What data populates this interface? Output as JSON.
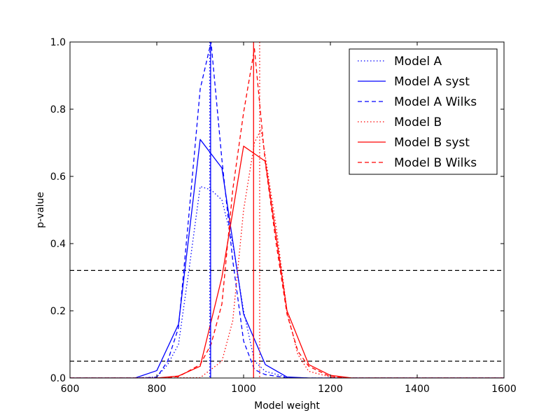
{
  "chart_data": {
    "type": "line",
    "title": "",
    "xlabel": "Model weight",
    "ylabel": "p-value",
    "xlim": [
      600,
      1600
    ],
    "ylim": [
      0,
      1.0
    ],
    "xticks": [
      "600",
      "800",
      "1000",
      "1200",
      "1400",
      "1600"
    ],
    "yticks": [
      "0.0",
      "0.2",
      "0.4",
      "0.6",
      "0.8",
      "1.0"
    ],
    "grid": false,
    "legend": "top-right",
    "colors": {
      "modelA": "#0000ff",
      "modelB": "#ff0000",
      "reference": "#000000"
    },
    "series": [
      {
        "name": "Model A",
        "color": "#0000ff",
        "style": "dotted",
        "x": [
          600,
          750,
          800,
          825,
          850,
          875,
          900,
          925,
          950,
          975,
          1000,
          1025,
          1050,
          1100,
          1150,
          1200,
          1400,
          1600
        ],
        "y": [
          0,
          0,
          0.003,
          0.04,
          0.1,
          0.33,
          0.57,
          0.56,
          0.53,
          0.4,
          0.2,
          0.05,
          0.02,
          0.002,
          0,
          0,
          0,
          0
        ]
      },
      {
        "name": "Model A syst",
        "color": "#0000ff",
        "style": "solid",
        "x": [
          600,
          750,
          800,
          850,
          900,
          950,
          1000,
          1050,
          1100,
          1150,
          1200,
          1400,
          1600
        ],
        "y": [
          0,
          0,
          0.022,
          0.16,
          0.71,
          0.625,
          0.19,
          0.04,
          0.003,
          0,
          0,
          0,
          0
        ]
      },
      {
        "name": "Model A Wilks",
        "color": "#0000ff",
        "style": "dashed",
        "x": [
          600,
          750,
          800,
          825,
          850,
          875,
          900,
          925,
          950,
          975,
          1000,
          1025,
          1050,
          1100,
          1150,
          1200,
          1400,
          1600
        ],
        "y": [
          0,
          0,
          0.002,
          0.05,
          0.15,
          0.5,
          0.86,
          1.0,
          0.65,
          0.35,
          0.11,
          0.025,
          0.01,
          0.001,
          0,
          0,
          0,
          0
        ]
      },
      {
        "name": "Model B",
        "color": "#ff0000",
        "style": "dotted",
        "x": [
          600,
          800,
          900,
          950,
          975,
          1000,
          1025,
          1040,
          1050,
          1075,
          1100,
          1125,
          1150,
          1200,
          1250,
          1400,
          1600
        ],
        "y": [
          0,
          0,
          0.001,
          0.05,
          0.17,
          0.5,
          0.7,
          0.74,
          0.66,
          0.45,
          0.2,
          0.07,
          0.02,
          0.003,
          0,
          0,
          0
        ]
      },
      {
        "name": "Model B syst",
        "color": "#ff0000",
        "style": "solid",
        "x": [
          600,
          800,
          850,
          900,
          950,
          1000,
          1050,
          1100,
          1150,
          1200,
          1250,
          1400,
          1600
        ],
        "y": [
          0,
          0,
          0.006,
          0.035,
          0.3,
          0.69,
          0.645,
          0.2,
          0.04,
          0.008,
          0,
          0,
          0
        ]
      },
      {
        "name": "Model B Wilks",
        "color": "#ff0000",
        "style": "dashed",
        "x": [
          600,
          800,
          850,
          900,
          925,
          950,
          975,
          1000,
          1025,
          1050,
          1075,
          1100,
          1125,
          1150,
          1200,
          1250,
          1400,
          1600
        ],
        "y": [
          0,
          0,
          0.004,
          0.04,
          0.1,
          0.22,
          0.56,
          0.79,
          0.98,
          0.64,
          0.4,
          0.19,
          0.08,
          0.035,
          0.004,
          0,
          0,
          0
        ]
      }
    ],
    "vlines": [
      {
        "x": 922,
        "color": "#0000ff",
        "style": "dotted"
      },
      {
        "x": 924,
        "color": "#0000ff",
        "style": "solid"
      },
      {
        "x": 1023,
        "color": "#ff0000",
        "style": "solid"
      },
      {
        "x": 1037,
        "color": "#ff0000",
        "style": "dotted"
      }
    ],
    "hlines": [
      {
        "y": 0.32,
        "color": "#000000",
        "style": "dashed"
      },
      {
        "y": 0.05,
        "color": "#000000",
        "style": "dashed"
      }
    ]
  }
}
